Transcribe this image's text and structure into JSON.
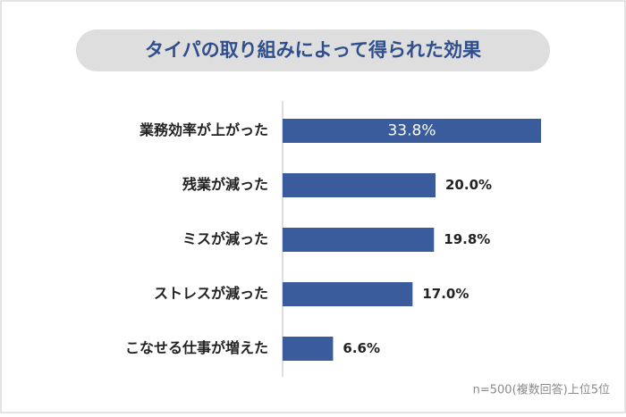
{
  "chart_data": {
    "type": "bar",
    "orientation": "horizontal",
    "title": "タイパの取り組みによって得られた効果",
    "categories": [
      "業務効率が上がった",
      "残業が減った",
      "ミスが減った",
      "ストレスが減った",
      "こなせる仕事が増えた"
    ],
    "values": [
      33.8,
      20.0,
      19.8,
      17.0,
      6.6
    ],
    "value_labels": [
      "33.8%",
      "20.0%",
      "19.8%",
      "17.0%",
      "6.6%"
    ],
    "color": "#3a5b9c",
    "xlim": [
      0,
      40
    ],
    "note": "n=500(複数回答)上位5位"
  }
}
